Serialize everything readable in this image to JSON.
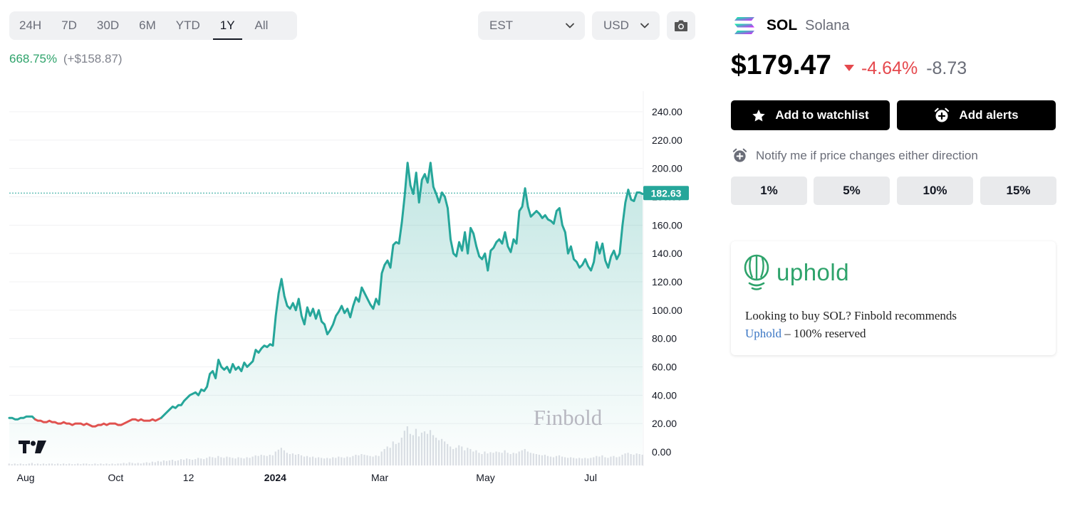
{
  "toolbar": {
    "ranges": [
      "24H",
      "7D",
      "30D",
      "6M",
      "YTD",
      "1Y",
      "All"
    ],
    "active_range": "1Y",
    "timezone": "EST",
    "currency": "USD",
    "screenshot_icon": "camera-icon"
  },
  "performance": {
    "percent": "668.75%",
    "absolute": "(+$158.87)"
  },
  "asset": {
    "symbol": "SOL",
    "name": "Solana",
    "price": "$179.47",
    "change_pct": "-4.64%",
    "change_abs": "-8.73"
  },
  "actions": {
    "watchlist_label": "Add to watchlist",
    "alerts_label": "Add alerts"
  },
  "notify": {
    "text": "Notify me if price changes either direction",
    "options": [
      "1%",
      "5%",
      "10%",
      "15%"
    ]
  },
  "promo": {
    "brand": "uphold",
    "text_before": "Looking to buy SOL? Finbold recommends",
    "link_text": "Uphold",
    "text_after": " – 100% reserved"
  },
  "colors": {
    "line_up": "#26a69a",
    "line_down": "#e0524f",
    "accent_green": "#2ea36b",
    "down_red": "#e5484d"
  },
  "chart_data": {
    "type": "area",
    "watermark": "Finbold",
    "current_label": "182.63",
    "ylim": [
      0,
      250
    ],
    "y_ticks": [
      0,
      20,
      40,
      60,
      80,
      100,
      120,
      140,
      160,
      180,
      200,
      220,
      240
    ],
    "y_tick_labels": [
      "0.00",
      "20.00",
      "40.00",
      "60.00",
      "80.00",
      "100.00",
      "120.00",
      "140.00",
      "160.00",
      "180.00",
      "200.00",
      "220.00",
      "240.00"
    ],
    "x_labels": [
      {
        "label": "Aug",
        "t": 0.012
      },
      {
        "label": "Oct",
        "t": 0.168
      },
      {
        "label": "12",
        "t": 0.283
      },
      {
        "label": "2024",
        "t": 0.42,
        "bold": true
      },
      {
        "label": "Mar",
        "t": 0.585
      },
      {
        "label": "May",
        "t": 0.752
      },
      {
        "label": "Jul",
        "t": 0.918
      }
    ],
    "series": [
      {
        "values": [
          24,
          24,
          23,
          23,
          24,
          24,
          25,
          25,
          25,
          23,
          22,
          22,
          21,
          21,
          22,
          21,
          21,
          20,
          20,
          21,
          20,
          20,
          19,
          20,
          20,
          20,
          19,
          20,
          19,
          18,
          18,
          19,
          19,
          20,
          19,
          20,
          20,
          20,
          19,
          19,
          20,
          21,
          22,
          23,
          23,
          22,
          23,
          22,
          22,
          22,
          23,
          22,
          23,
          24,
          26,
          28,
          30,
          32,
          31,
          33,
          33,
          36,
          38,
          40,
          41,
          42,
          40,
          44,
          43,
          46,
          55,
          57,
          52,
          65,
          60,
          58,
          60,
          56,
          62,
          58,
          60,
          57,
          63,
          60,
          62,
          64,
          72,
          70,
          73,
          75,
          74,
          76,
          75,
          96,
          112,
          122,
          110,
          103,
          101,
          105,
          100,
          108,
          96,
          90,
          102,
          96,
          101,
          94,
          100,
          92,
          90,
          83,
          86,
          90,
          96,
          99,
          103,
          98,
          101,
          95,
          103,
          109,
          106,
          116,
          112,
          108,
          104,
          101,
          108,
          104,
          126,
          132,
          135,
          130,
          146,
          148,
          147,
          162,
          181,
          204,
          188,
          182,
          197,
          176,
          192,
          196,
          190,
          204,
          187,
          182,
          176,
          183,
          180,
          172,
          150,
          140,
          138,
          148,
          142,
          155,
          140,
          158,
          154,
          145,
          138,
          136,
          140,
          128,
          142,
          144,
          148,
          150,
          147,
          155,
          145,
          141,
          150,
          147,
          170,
          173,
          186,
          173,
          166,
          168,
          170,
          168,
          165,
          167,
          164,
          163,
          161,
          170,
          172,
          160,
          155,
          140,
          145,
          136,
          134,
          130,
          132,
          136,
          131,
          128,
          134,
          148,
          140,
          147,
          135,
          130,
          138,
          142,
          136,
          140,
          160,
          176,
          185,
          178,
          177,
          183,
          183,
          182
        ]
      }
    ],
    "down_until_index": 53,
    "volume": [
      3,
      2,
      3,
      2,
      3,
      2,
      2,
      3,
      4,
      2,
      3,
      2,
      3,
      2,
      3,
      3,
      2,
      3,
      2,
      3,
      2,
      3,
      2,
      2,
      3,
      2,
      3,
      3,
      2,
      2,
      3,
      2,
      3,
      2,
      3,
      2,
      3,
      2,
      3,
      3,
      4,
      3,
      5,
      4,
      3,
      4,
      3,
      4,
      5,
      4,
      6,
      5,
      7,
      6,
      8,
      7,
      8,
      9,
      7,
      8,
      10,
      9,
      11,
      10,
      9,
      10,
      12,
      11,
      10,
      12,
      14,
      13,
      12,
      15,
      13,
      12,
      14,
      13,
      12,
      11,
      13,
      12,
      11,
      13,
      12,
      14,
      16,
      15,
      17,
      16,
      15,
      17,
      16,
      22,
      25,
      28,
      24,
      20,
      18,
      19,
      17,
      18,
      16,
      14,
      15,
      13,
      14,
      12,
      13,
      12,
      11,
      12,
      11,
      13,
      12,
      14,
      13,
      12,
      14,
      13,
      15,
      17,
      16,
      18,
      17,
      16,
      15,
      14,
      16,
      15,
      22,
      26,
      30,
      28,
      38,
      34,
      36,
      44,
      55,
      62,
      50,
      48,
      58,
      46,
      52,
      54,
      50,
      56,
      48,
      44,
      40,
      42,
      38,
      34,
      30,
      26,
      28,
      32,
      30,
      24,
      28,
      26,
      22,
      24,
      20,
      18,
      22,
      19,
      21,
      20,
      22,
      21,
      20,
      24,
      20,
      18,
      20,
      19,
      22,
      24,
      26,
      22,
      20,
      19,
      18,
      17,
      16,
      17,
      15,
      14,
      13,
      15,
      16,
      14,
      13,
      12,
      13,
      12,
      11,
      12,
      11,
      12,
      11,
      12,
      13,
      15,
      14,
      16,
      13,
      12,
      14,
      15,
      13,
      14,
      17,
      19,
      20,
      18,
      17,
      19,
      18,
      17
    ]
  }
}
